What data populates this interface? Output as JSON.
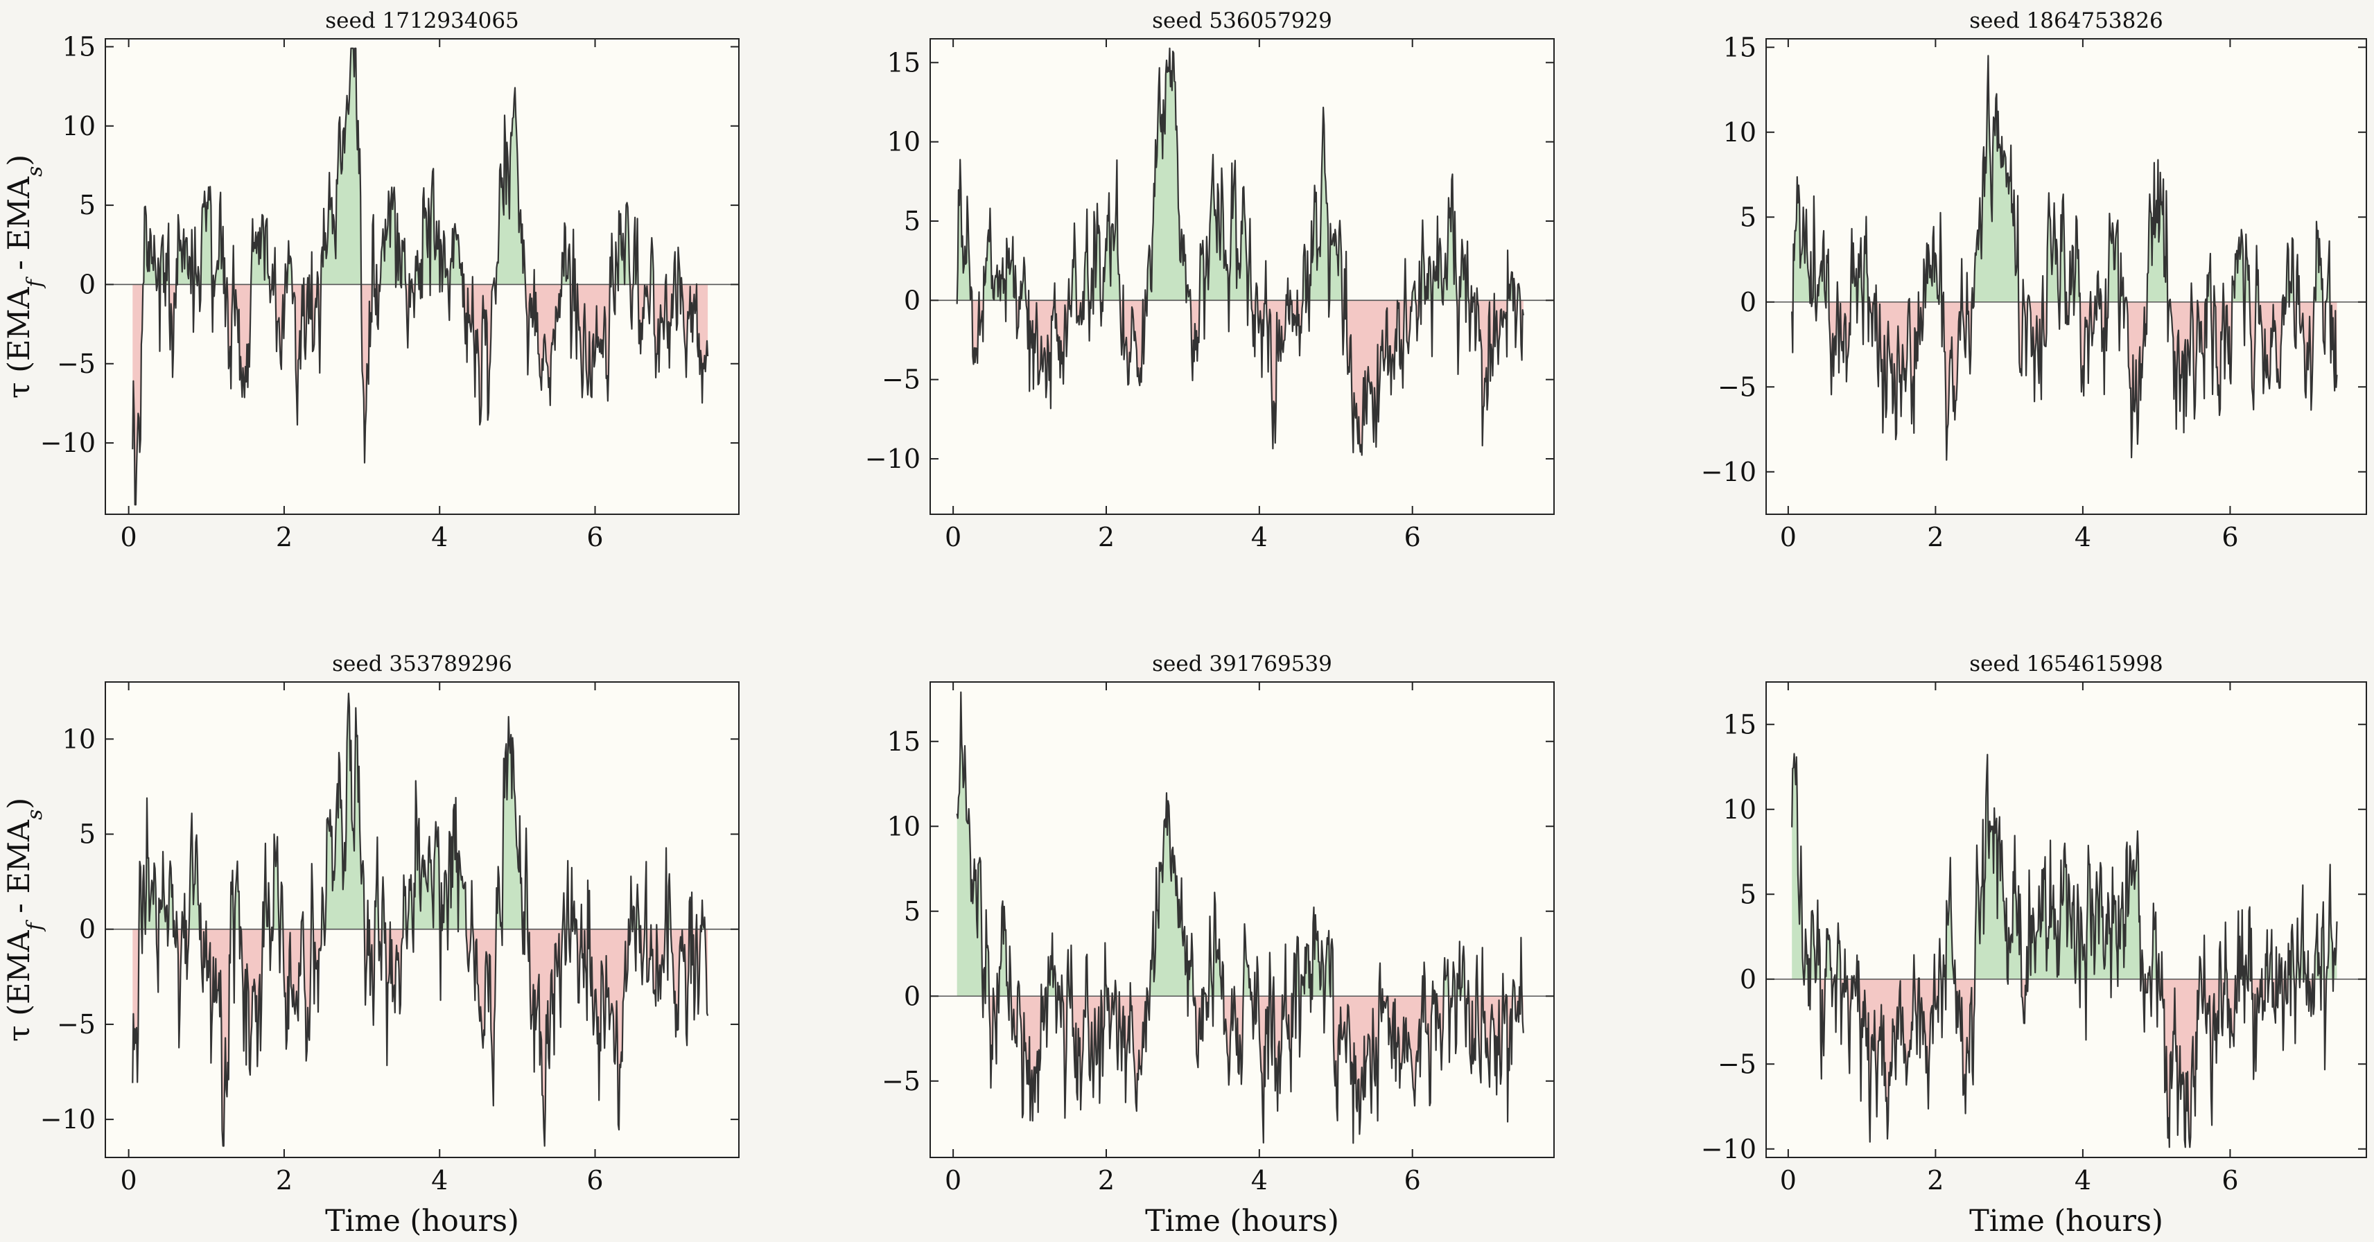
{
  "figure": {
    "xlabel": "Time (hours)",
    "ylabel": "τ (EMA_f - EMA_s)"
  },
  "colors": {
    "line": "#333333",
    "positive_fill": "#c7e3c3",
    "negative_fill": "#f3c8c5",
    "panel_bg": "#fdfcf6",
    "zero_line": "#555555"
  },
  "chart_data": [
    {
      "type": "area",
      "title": "seed 1712934065",
      "xlabel": "",
      "ylabel": "τ (EMA_f - EMA_s)",
      "xlim": [
        -0.3,
        7.85
      ],
      "ylim": [
        -14.5,
        15.5
      ],
      "xticks": [
        0,
        2,
        4,
        6
      ],
      "yticks": [
        -10,
        -5,
        0,
        5,
        10,
        15
      ],
      "n_points": 720,
      "x_range": [
        0.05,
        7.45
      ],
      "y_anchors": [
        [
          0.05,
          -9.5
        ],
        [
          0.1,
          -13
        ],
        [
          0.15,
          -10.5
        ],
        [
          0.2,
          3
        ],
        [
          0.4,
          1
        ],
        [
          0.6,
          -2
        ],
        [
          0.8,
          2
        ],
        [
          1.0,
          2.5
        ],
        [
          1.2,
          1
        ],
        [
          1.4,
          -4
        ],
        [
          1.5,
          -6
        ],
        [
          1.6,
          1
        ],
        [
          1.8,
          3
        ],
        [
          1.9,
          -2
        ],
        [
          2.05,
          -1
        ],
        [
          2.15,
          -3
        ],
        [
          2.3,
          -4
        ],
        [
          2.45,
          -3
        ],
        [
          2.55,
          2
        ],
        [
          2.7,
          6
        ],
        [
          2.8,
          11
        ],
        [
          2.88,
          13
        ],
        [
          2.95,
          9
        ],
        [
          3.0,
          -2
        ],
        [
          3.05,
          -9
        ],
        [
          3.15,
          3
        ],
        [
          3.4,
          5
        ],
        [
          3.6,
          -3
        ],
        [
          3.8,
          3
        ],
        [
          4.0,
          2
        ],
        [
          4.2,
          3
        ],
        [
          4.4,
          -3
        ],
        [
          4.6,
          -4
        ],
        [
          4.8,
          5
        ],
        [
          4.95,
          10
        ],
        [
          5.05,
          3
        ],
        [
          5.2,
          -2
        ],
        [
          5.3,
          -7
        ],
        [
          5.45,
          -6
        ],
        [
          5.6,
          1
        ],
        [
          5.8,
          -3
        ],
        [
          6.0,
          -6
        ],
        [
          6.3,
          3
        ],
        [
          6.6,
          -1
        ],
        [
          6.9,
          -3
        ],
        [
          7.1,
          1
        ],
        [
          7.3,
          -3
        ],
        [
          7.45,
          -6.5
        ]
      ]
    },
    {
      "type": "area",
      "title": "seed 536057929",
      "xlabel": "",
      "ylabel": "",
      "xlim": [
        -0.3,
        7.85
      ],
      "ylim": [
        -13.5,
        16.5
      ],
      "xticks": [
        0,
        2,
        4,
        6
      ],
      "yticks": [
        -10,
        -5,
        0,
        5,
        10,
        15
      ],
      "n_points": 720,
      "x_range": [
        0.05,
        7.45
      ],
      "y_anchors": [
        [
          0.05,
          0
        ],
        [
          0.1,
          5
        ],
        [
          0.2,
          3
        ],
        [
          0.3,
          -2
        ],
        [
          0.5,
          1
        ],
        [
          0.8,
          2
        ],
        [
          1.0,
          -3
        ],
        [
          1.2,
          -5
        ],
        [
          1.5,
          -1
        ],
        [
          1.8,
          2
        ],
        [
          2.1,
          4
        ],
        [
          2.3,
          -3
        ],
        [
          2.45,
          -5
        ],
        [
          2.6,
          3
        ],
        [
          2.7,
          12
        ],
        [
          2.8,
          11
        ],
        [
          2.9,
          14
        ],
        [
          2.95,
          8
        ],
        [
          3.05,
          1
        ],
        [
          3.2,
          -2
        ],
        [
          3.4,
          7
        ],
        [
          3.6,
          2
        ],
        [
          3.8,
          5
        ],
        [
          4.0,
          -1
        ],
        [
          4.2,
          -4
        ],
        [
          4.5,
          -2
        ],
        [
          4.7,
          3
        ],
        [
          4.85,
          8
        ],
        [
          5.0,
          4
        ],
        [
          5.2,
          -3
        ],
        [
          5.35,
          -9
        ],
        [
          5.45,
          -6
        ],
        [
          5.6,
          -2
        ],
        [
          5.8,
          -4
        ],
        [
          6.0,
          -1
        ],
        [
          6.2,
          1
        ],
        [
          6.5,
          3
        ],
        [
          6.8,
          -1
        ],
        [
          7.1,
          -3
        ],
        [
          7.3,
          0
        ],
        [
          7.45,
          -1.5
        ]
      ]
    },
    {
      "type": "area",
      "title": "seed 1864753826",
      "xlabel": "",
      "ylabel": "",
      "xlim": [
        -0.3,
        7.85
      ],
      "ylim": [
        -12.5,
        15.5
      ],
      "xticks": [
        0,
        2,
        4,
        6
      ],
      "yticks": [
        -10,
        -5,
        0,
        5,
        10,
        15
      ],
      "n_points": 720,
      "x_range": [
        0.05,
        7.45
      ],
      "y_anchors": [
        [
          0.05,
          1
        ],
        [
          0.15,
          8
        ],
        [
          0.25,
          4
        ],
        [
          0.4,
          2
        ],
        [
          0.6,
          -2
        ],
        [
          0.8,
          -3
        ],
        [
          1.0,
          3
        ],
        [
          1.2,
          -2
        ],
        [
          1.4,
          -4
        ],
        [
          1.6,
          -3
        ],
        [
          1.8,
          -1
        ],
        [
          2.0,
          3
        ],
        [
          2.15,
          -6
        ],
        [
          2.3,
          -3
        ],
        [
          2.5,
          -1
        ],
        [
          2.65,
          7
        ],
        [
          2.8,
          11
        ],
        [
          2.9,
          12
        ],
        [
          3.0,
          7
        ],
        [
          3.1,
          2
        ],
        [
          3.2,
          -2
        ],
        [
          3.4,
          -3
        ],
        [
          3.6,
          5
        ],
        [
          3.8,
          1
        ],
        [
          4.0,
          -1
        ],
        [
          4.2,
          -2
        ],
        [
          4.4,
          2
        ],
        [
          4.6,
          -3
        ],
        [
          4.75,
          -9
        ],
        [
          4.9,
          4
        ],
        [
          5.1,
          3
        ],
        [
          5.3,
          -6
        ],
        [
          5.5,
          -3
        ],
        [
          5.7,
          -2
        ],
        [
          5.9,
          -3
        ],
        [
          6.2,
          2
        ],
        [
          6.5,
          -4
        ],
        [
          6.8,
          0
        ],
        [
          7.1,
          -2
        ],
        [
          7.3,
          1
        ],
        [
          7.45,
          -3
        ]
      ]
    },
    {
      "type": "area",
      "title": "seed 353789296",
      "xlabel": "Time (hours)",
      "ylabel": "τ (EMA_f - EMA_s)",
      "xlim": [
        -0.3,
        7.85
      ],
      "ylim": [
        -12,
        13
      ],
      "xticks": [
        0,
        2,
        4,
        6
      ],
      "yticks": [
        -10,
        -5,
        0,
        5,
        10
      ],
      "n_points": 720,
      "x_range": [
        0.05,
        7.45
      ],
      "y_anchors": [
        [
          0.05,
          -6
        ],
        [
          0.15,
          0
        ],
        [
          0.3,
          3
        ],
        [
          0.5,
          2
        ],
        [
          0.7,
          -1
        ],
        [
          0.9,
          1
        ],
        [
          1.05,
          -4
        ],
        [
          1.2,
          -6
        ],
        [
          1.4,
          1
        ],
        [
          1.6,
          -5
        ],
        [
          1.8,
          2
        ],
        [
          2.0,
          -1
        ],
        [
          2.2,
          -3
        ],
        [
          2.4,
          -2
        ],
        [
          2.6,
          4
        ],
        [
          2.75,
          7
        ],
        [
          2.85,
          10
        ],
        [
          2.95,
          6
        ],
        [
          3.05,
          0
        ],
        [
          3.2,
          3
        ],
        [
          3.4,
          -2
        ],
        [
          3.6,
          1
        ],
        [
          3.8,
          4
        ],
        [
          4.0,
          0
        ],
        [
          4.3,
          3
        ],
        [
          4.5,
          -2
        ],
        [
          4.7,
          -6
        ],
        [
          4.85,
          8
        ],
        [
          5.0,
          3
        ],
        [
          5.2,
          -3
        ],
        [
          5.3,
          -9
        ],
        [
          5.5,
          -2
        ],
        [
          5.7,
          1
        ],
        [
          5.9,
          -2
        ],
        [
          6.1,
          -4
        ],
        [
          6.3,
          -8
        ],
        [
          6.5,
          2
        ],
        [
          6.8,
          1
        ],
        [
          7.1,
          -2
        ],
        [
          7.3,
          0
        ],
        [
          7.45,
          -4
        ]
      ]
    },
    {
      "type": "area",
      "title": "seed 391769539",
      "xlabel": "Time (hours)",
      "ylabel": "",
      "xlim": [
        -0.3,
        7.85
      ],
      "ylim": [
        -9.5,
        18.5
      ],
      "xticks": [
        0,
        2,
        4,
        6
      ],
      "yticks": [
        -5,
        0,
        5,
        10,
        15
      ],
      "n_points": 720,
      "x_range": [
        0.05,
        7.45
      ],
      "y_anchors": [
        [
          0.05,
          10
        ],
        [
          0.1,
          16
        ],
        [
          0.2,
          8
        ],
        [
          0.35,
          4
        ],
        [
          0.5,
          2
        ],
        [
          0.7,
          1
        ],
        [
          0.9,
          -2
        ],
        [
          1.1,
          -4
        ],
        [
          1.3,
          -1
        ],
        [
          1.5,
          -3
        ],
        [
          1.7,
          -4
        ],
        [
          1.9,
          -2
        ],
        [
          2.1,
          1
        ],
        [
          2.3,
          -4
        ],
        [
          2.45,
          -5
        ],
        [
          2.6,
          2
        ],
        [
          2.7,
          7
        ],
        [
          2.8,
          9
        ],
        [
          2.9,
          7
        ],
        [
          3.0,
          3
        ],
        [
          3.2,
          -1
        ],
        [
          3.4,
          2
        ],
        [
          3.6,
          -2
        ],
        [
          3.8,
          1
        ],
        [
          4.0,
          -1
        ],
        [
          4.2,
          -3
        ],
        [
          4.5,
          0
        ],
        [
          4.7,
          3
        ],
        [
          4.9,
          1
        ],
        [
          5.1,
          -3
        ],
        [
          5.3,
          -6
        ],
        [
          5.5,
          -5
        ],
        [
          5.7,
          -1
        ],
        [
          6.0,
          -3
        ],
        [
          6.3,
          -1
        ],
        [
          6.6,
          0
        ],
        [
          6.9,
          -1
        ],
        [
          7.2,
          -3
        ],
        [
          7.45,
          1
        ]
      ]
    },
    {
      "type": "area",
      "title": "seed 1654615998",
      "xlabel": "Time (hours)",
      "ylabel": "",
      "xlim": [
        -0.3,
        7.85
      ],
      "ylim": [
        -10.5,
        17.5
      ],
      "xticks": [
        0,
        2,
        4,
        6
      ],
      "yticks": [
        -10,
        -5,
        0,
        5,
        10,
        15
      ],
      "n_points": 720,
      "x_range": [
        0.05,
        7.45
      ],
      "y_anchors": [
        [
          0.05,
          6
        ],
        [
          0.1,
          11
        ],
        [
          0.2,
          5
        ],
        [
          0.3,
          3
        ],
        [
          0.5,
          1
        ],
        [
          0.7,
          -1
        ],
        [
          0.9,
          -3
        ],
        [
          1.1,
          -2
        ],
        [
          1.3,
          -5
        ],
        [
          1.5,
          -4
        ],
        [
          1.7,
          -2
        ],
        [
          1.9,
          -6
        ],
        [
          2.05,
          1
        ],
        [
          2.2,
          3
        ],
        [
          2.4,
          -3
        ],
        [
          2.5,
          -6
        ],
        [
          2.6,
          3
        ],
        [
          2.7,
          12
        ],
        [
          2.8,
          9
        ],
        [
          2.9,
          6
        ],
        [
          3.0,
          4
        ],
        [
          3.2,
          2
        ],
        [
          3.5,
          3
        ],
        [
          3.8,
          4
        ],
        [
          4.0,
          2
        ],
        [
          4.2,
          3
        ],
        [
          4.5,
          2
        ],
        [
          4.7,
          5
        ],
        [
          4.9,
          2
        ],
        [
          5.1,
          -3
        ],
        [
          5.3,
          -7
        ],
        [
          5.45,
          -6
        ],
        [
          5.6,
          -2
        ],
        [
          5.8,
          -4
        ],
        [
          6.0,
          -2
        ],
        [
          6.3,
          1
        ],
        [
          6.6,
          -2
        ],
        [
          6.9,
          2
        ],
        [
          7.2,
          -1
        ],
        [
          7.45,
          3
        ]
      ]
    }
  ]
}
